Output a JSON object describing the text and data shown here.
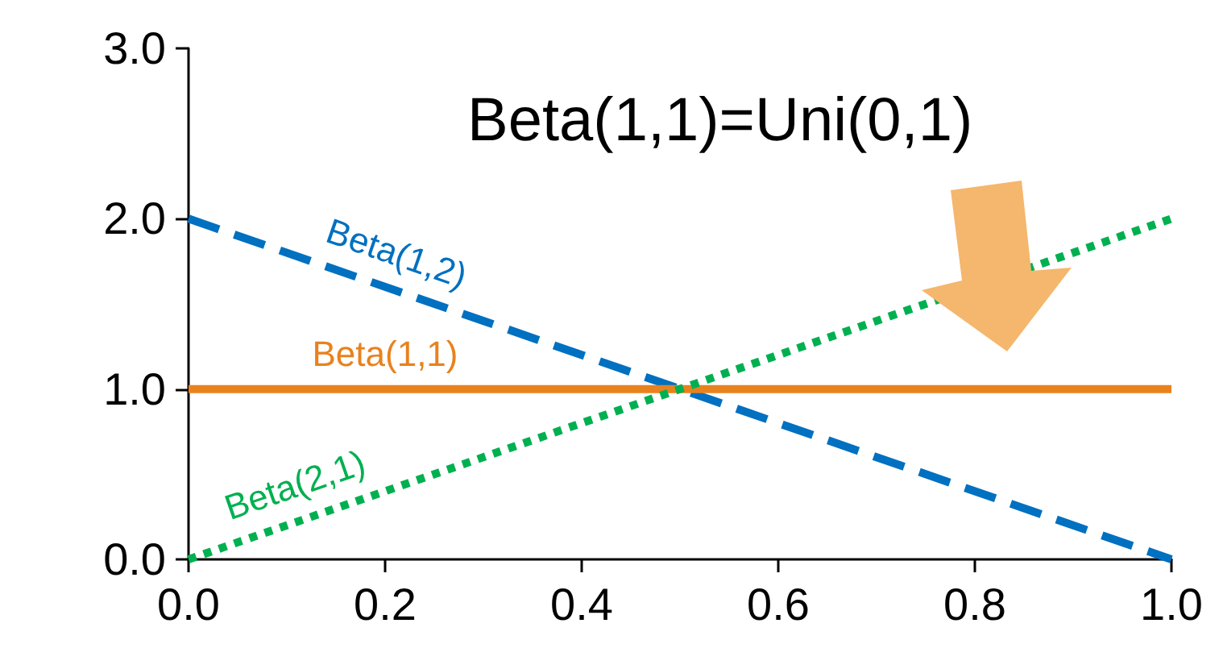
{
  "chart_data": {
    "type": "line",
    "x": [
      0,
      1
    ],
    "xlim": [
      0,
      1
    ],
    "ylim": [
      0,
      3
    ],
    "xticks": [
      {
        "value": 0,
        "label": "0.0"
      },
      {
        "value": 0.2,
        "label": "0.2"
      },
      {
        "value": 0.4,
        "label": "0.4"
      },
      {
        "value": 0.6,
        "label": "0.6"
      },
      {
        "value": 0.8,
        "label": "0.8"
      },
      {
        "value": 1,
        "label": "1.0"
      }
    ],
    "yticks": [
      {
        "value": 0,
        "label": "0.0"
      },
      {
        "value": 1,
        "label": "1.0"
      },
      {
        "value": 2,
        "label": "2.0"
      },
      {
        "value": 3,
        "label": "3.0"
      }
    ],
    "grid": false,
    "legend": false,
    "marker": "none",
    "series": [
      {
        "name": "Beta(1,2)",
        "color": "#0070c0",
        "values": [
          2,
          0
        ],
        "line_style": "dashed"
      },
      {
        "name": "Beta(1,1)",
        "color": "#e8821e",
        "values": [
          1,
          1
        ],
        "line_style": "solid"
      },
      {
        "name": "Beta(2,1)",
        "color": "#00b050",
        "values": [
          0,
          2
        ],
        "line_style": "dotted"
      }
    ],
    "annotations": [
      "Beta(1,1)=Uni(0,1)"
    ]
  }
}
